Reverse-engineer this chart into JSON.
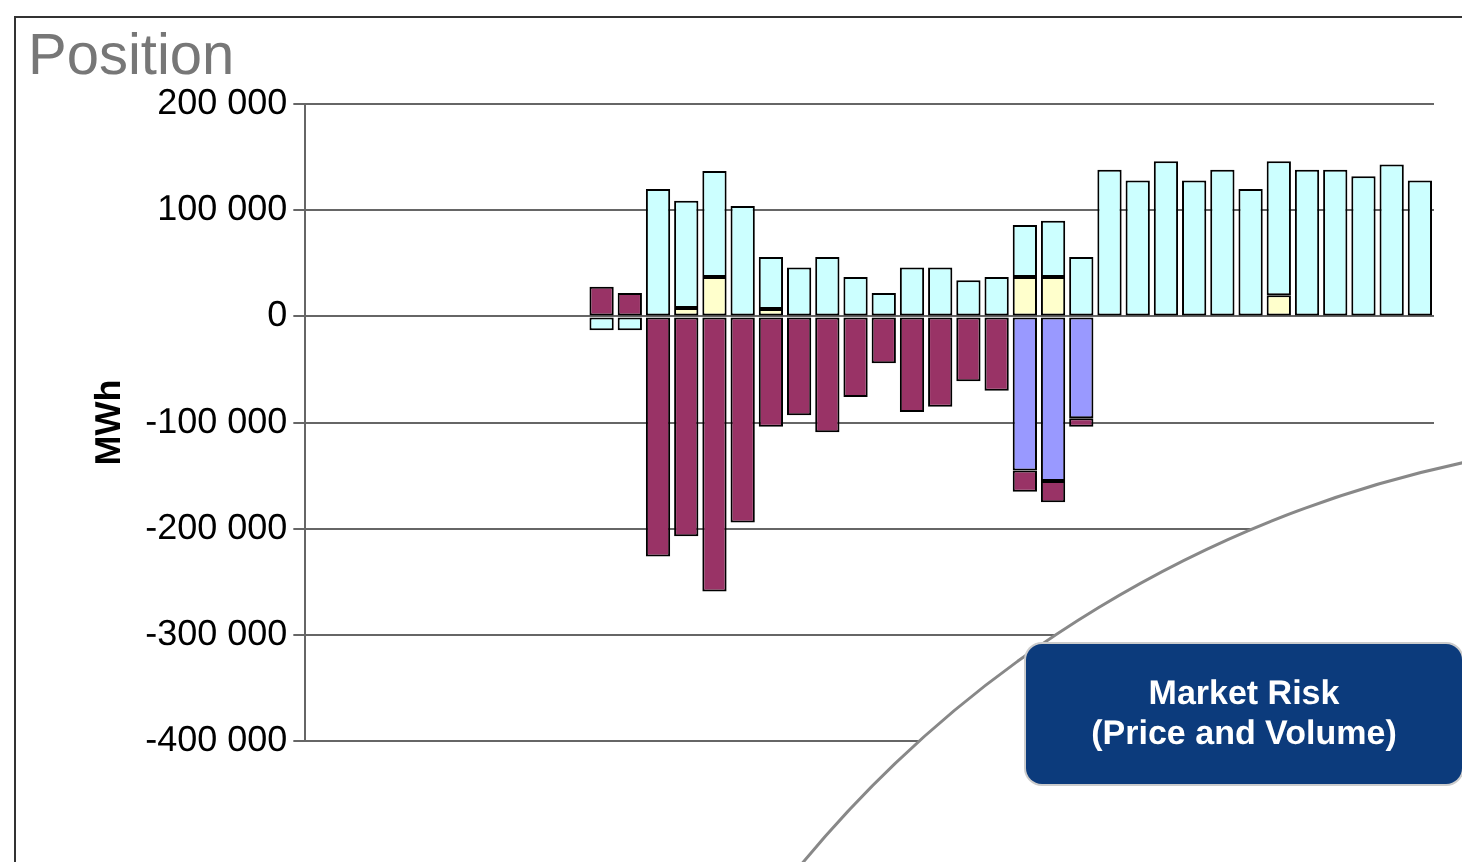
{
  "chart_data": {
    "type": "bar",
    "title": "Position",
    "ylabel": "MWh",
    "stacked": true,
    "grid": "y",
    "legend": false,
    "categories": [
      null,
      null,
      null,
      null,
      null,
      null,
      null,
      null,
      null,
      null,
      null,
      null,
      null,
      null,
      null,
      null,
      null,
      null,
      null,
      null,
      null,
      null,
      null,
      null,
      null,
      null,
      null,
      null,
      null,
      null,
      null,
      null,
      null,
      null,
      null,
      null,
      null,
      null,
      null,
      null
    ],
    "series": [
      {
        "color": "#ffffcc",
        "values": [
          null,
          null,
          null,
          null,
          null,
          null,
          null,
          null,
          null,
          null,
          null,
          null,
          null,
          8000,
          37000,
          null,
          7000,
          null,
          null,
          null,
          null,
          null,
          null,
          null,
          null,
          37000,
          37000,
          null,
          null,
          null,
          null,
          null,
          null,
          null,
          20000,
          null,
          null,
          null,
          null,
          null
        ]
      },
      {
        "color": "#ccffff",
        "values": [
          null,
          null,
          null,
          null,
          null,
          null,
          null,
          null,
          null,
          null,
          -13000,
          -13000,
          120000,
          101000,
          100000,
          104000,
          49000,
          46000,
          56000,
          37000,
          22000,
          46000,
          46000,
          34000,
          37000,
          49000,
          53000,
          56000,
          138000,
          128000,
          146000,
          128000,
          138000,
          120000,
          126000,
          138000,
          138000,
          132000,
          143000,
          128000
        ]
      },
      {
        "color": "#9999ff",
        "values": [
          null,
          null,
          null,
          null,
          null,
          null,
          null,
          null,
          null,
          null,
          null,
          null,
          null,
          null,
          null,
          null,
          null,
          null,
          null,
          null,
          null,
          null,
          null,
          null,
          null,
          -145000,
          -155000,
          -96000,
          null,
          null,
          null,
          null,
          null,
          null,
          null,
          null,
          null,
          null,
          null,
          null
        ]
      },
      {
        "color": "#993366",
        "values": [
          null,
          null,
          null,
          null,
          null,
          null,
          null,
          null,
          null,
          null,
          28000,
          22000,
          -226000,
          -207000,
          -259000,
          -194000,
          -104000,
          -93000,
          -109000,
          -76000,
          -44000,
          -90000,
          -85000,
          -61000,
          -70000,
          -20000,
          -20000,
          -8000,
          null,
          null,
          null,
          null,
          null,
          null,
          null,
          null,
          null,
          null,
          null,
          null
        ]
      }
    ],
    "ylim": [
      -400000,
      200000
    ],
    "yticks": [
      {
        "value": -400000,
        "label": "-400 000"
      },
      {
        "value": -300000,
        "label": "-300 000"
      },
      {
        "value": -200000,
        "label": "-200 000"
      },
      {
        "value": -100000,
        "label": "-100 000"
      },
      0,
      {
        "value": 100000,
        "label": "100 000"
      },
      {
        "value": 200000,
        "label": "200 000"
      }
    ],
    "annotations": [
      "Market Risk\n(Price and Volume)"
    ]
  }
}
